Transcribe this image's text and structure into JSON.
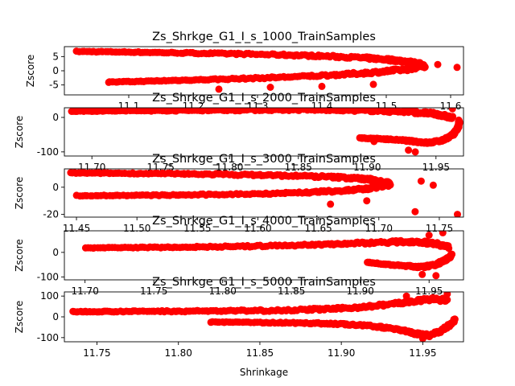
{
  "figure": {
    "xlabel": "Shrinkage",
    "marker_color": "#ff0000"
  },
  "chart_data": [
    {
      "type": "scatter",
      "title": "Zs_Shrkge_G1_I_s_1000_TrainSamples",
      "ylabel": "Zscore",
      "xlim": [
        11.0,
        11.62
      ],
      "ylim": [
        -8.5,
        8.5
      ],
      "xticks": [
        "11.1",
        "11.2",
        "11.3",
        "11.4",
        "11.5",
        "11.6"
      ],
      "yticks": [
        "-5",
        "0",
        "5"
      ],
      "upper_arm": [
        [
          11.02,
          6.8
        ],
        [
          11.1,
          6.6
        ],
        [
          11.18,
          6.3
        ],
        [
          11.26,
          6.0
        ],
        [
          11.34,
          5.6
        ],
        [
          11.4,
          5.2
        ],
        [
          11.46,
          4.6
        ],
        [
          11.5,
          4.0
        ],
        [
          11.53,
          3.3
        ],
        [
          11.55,
          2.5
        ],
        [
          11.56,
          1.5
        ]
      ],
      "lower_arm": [
        [
          11.07,
          -4.0
        ],
        [
          11.14,
          -3.6
        ],
        [
          11.22,
          -3.1
        ],
        [
          11.3,
          -2.6
        ],
        [
          11.38,
          -1.9
        ],
        [
          11.44,
          -1.2
        ],
        [
          11.49,
          -0.4
        ],
        [
          11.53,
          0.5
        ],
        [
          11.55,
          1.3
        ]
      ],
      "outliers": [
        [
          11.07,
          -3.9
        ],
        [
          11.58,
          2.2
        ],
        [
          11.61,
          1.2
        ],
        [
          11.4,
          -5.5
        ],
        [
          11.32,
          -5.8
        ],
        [
          11.48,
          -4.8
        ],
        [
          11.24,
          -6.5
        ]
      ]
    },
    {
      "type": "scatter",
      "title": "Zs_Shrkge_G1_I_s_2000_TrainSamples",
      "ylabel": "Zscore",
      "xlim": [
        11.68,
        11.97
      ],
      "ylim": [
        -112,
        28
      ],
      "xticks": [
        "11.70",
        "11.75",
        "11.80",
        "11.85",
        "11.90",
        "11.95"
      ],
      "yticks": [
        "-100",
        "0"
      ],
      "upper_arm": [
        [
          11.685,
          18
        ],
        [
          11.72,
          19
        ],
        [
          11.76,
          20
        ],
        [
          11.8,
          21
        ],
        [
          11.84,
          22
        ],
        [
          11.87,
          22
        ],
        [
          11.89,
          21
        ],
        [
          11.91,
          19
        ],
        [
          11.93,
          16
        ],
        [
          11.945,
          12
        ],
        [
          11.955,
          6
        ],
        [
          11.962,
          -2
        ]
      ],
      "lower_arm": [
        [
          11.895,
          -60
        ],
        [
          11.91,
          -62
        ],
        [
          11.925,
          -66
        ],
        [
          11.935,
          -70
        ],
        [
          11.945,
          -74
        ],
        [
          11.955,
          -66
        ],
        [
          11.962,
          -52
        ],
        [
          11.966,
          -30
        ],
        [
          11.967,
          -10
        ]
      ],
      "outliers": [
        [
          11.93,
          -95
        ],
        [
          11.935,
          -100
        ],
        [
          11.905,
          -70
        ],
        [
          11.962,
          25
        ]
      ]
    },
    {
      "type": "scatter",
      "title": "Zs_Shrkge_G1_I_s_3000_TrainSamples",
      "ylabel": "Zscore",
      "xlim": [
        11.44,
        11.77
      ],
      "ylim": [
        -22,
        13.5
      ],
      "xticks": [
        "11.45",
        "11.50",
        "11.55",
        "11.60",
        "11.65",
        "11.70",
        "11.75"
      ],
      "yticks": [
        "-20",
        "0"
      ],
      "upper_arm": [
        [
          11.445,
          10.5
        ],
        [
          11.48,
          10.3
        ],
        [
          11.52,
          10.0
        ],
        [
          11.56,
          9.6
        ],
        [
          11.6,
          9.0
        ],
        [
          11.64,
          8.2
        ],
        [
          11.67,
          7.2
        ],
        [
          11.69,
          6.0
        ],
        [
          11.7,
          4.5
        ],
        [
          11.71,
          2.5
        ]
      ],
      "lower_arm": [
        [
          11.45,
          -6.2
        ],
        [
          11.5,
          -6.0
        ],
        [
          11.55,
          -5.6
        ],
        [
          11.6,
          -4.8
        ],
        [
          11.64,
          -3.8
        ],
        [
          11.67,
          -2.6
        ],
        [
          11.69,
          -1.2
        ],
        [
          11.7,
          0.5
        ],
        [
          11.71,
          2.0
        ]
      ],
      "outliers": [
        [
          11.735,
          4.5
        ],
        [
          11.745,
          1.5
        ],
        [
          11.73,
          -18
        ],
        [
          11.765,
          -20
        ],
        [
          11.66,
          -12.5
        ],
        [
          11.69,
          -10
        ]
      ]
    },
    {
      "type": "scatter",
      "title": "Zs_Shrkge_G1_I_s_4000_TrainSamples",
      "ylabel": "Zscore",
      "xlim": [
        11.685,
        11.975
      ],
      "ylim": [
        -112,
        88
      ],
      "xticks": [
        "11.70",
        "11.75",
        "11.80",
        "11.85",
        "11.90",
        "11.95"
      ],
      "yticks": [
        "-100",
        "0"
      ],
      "upper_arm": [
        [
          11.7,
          18
        ],
        [
          11.74,
          20
        ],
        [
          11.78,
          22
        ],
        [
          11.82,
          25
        ],
        [
          11.86,
          30
        ],
        [
          11.89,
          36
        ],
        [
          11.92,
          42
        ],
        [
          11.94,
          44
        ],
        [
          11.955,
          36
        ],
        [
          11.965,
          20
        ]
      ],
      "lower_arm": [
        [
          11.905,
          -40
        ],
        [
          11.92,
          -50
        ],
        [
          11.935,
          -56
        ],
        [
          11.945,
          -60
        ],
        [
          11.955,
          -50
        ],
        [
          11.962,
          -30
        ],
        [
          11.967,
          -10
        ]
      ],
      "outliers": [
        [
          11.96,
          80
        ],
        [
          11.95,
          70
        ],
        [
          11.955,
          -95
        ],
        [
          11.945,
          -90
        ]
      ]
    },
    {
      "type": "scatter",
      "title": "Zs_Shrkge_G1_I_s_5000_TrainSamples",
      "ylabel": "Zscore",
      "xlim": [
        11.73,
        11.975
      ],
      "ylim": [
        -120,
        120
      ],
      "xticks": [
        "11.75",
        "11.80",
        "11.85",
        "11.90",
        "11.95"
      ],
      "yticks": [
        "-100",
        "0",
        "100"
      ],
      "upper_arm": [
        [
          11.735,
          25
        ],
        [
          11.76,
          26
        ],
        [
          11.79,
          27
        ],
        [
          11.82,
          28
        ],
        [
          11.85,
          30
        ],
        [
          11.88,
          35
        ],
        [
          11.9,
          40
        ],
        [
          11.92,
          52
        ],
        [
          11.94,
          70
        ],
        [
          11.955,
          85
        ],
        [
          11.965,
          80
        ]
      ],
      "lower_arm": [
        [
          11.82,
          -25
        ],
        [
          11.85,
          -27
        ],
        [
          11.88,
          -30
        ],
        [
          11.9,
          -35
        ],
        [
          11.92,
          -45
        ],
        [
          11.935,
          -60
        ],
        [
          11.945,
          -80
        ],
        [
          11.955,
          -90
        ],
        [
          11.965,
          -50
        ],
        [
          11.97,
          -10
        ]
      ],
      "outliers": [
        [
          11.95,
          -105
        ],
        [
          11.965,
          110
        ],
        [
          11.94,
          100
        ]
      ]
    }
  ]
}
